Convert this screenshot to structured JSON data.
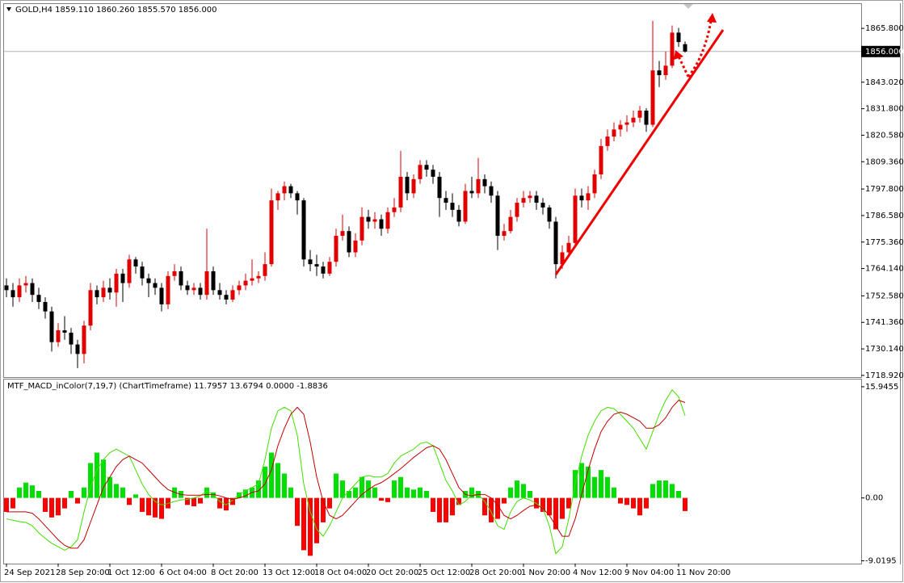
{
  "chart_data": [
    {
      "type": "candlestick",
      "legend_text": "GOLD,H4  1859.110 1860.260 1855.570 1856.000",
      "up_color": "#e00000",
      "down_color": "#000000",
      "ylim": [
        1718.2,
        1876.1
      ],
      "yticks": [
        {
          "value": 1718.92,
          "label": "1718.920"
        },
        {
          "value": 1730.14,
          "label": "1730.140"
        },
        {
          "value": 1741.36,
          "label": "1741.360"
        },
        {
          "value": 1752.58,
          "label": "1752.580"
        },
        {
          "value": 1764.14,
          "label": "1764.140"
        },
        {
          "value": 1775.36,
          "label": "1775.360"
        },
        {
          "value": 1786.58,
          "label": "1786.580"
        },
        {
          "value": 1797.8,
          "label": "1797.800"
        },
        {
          "value": 1809.36,
          "label": "1809.360"
        },
        {
          "value": 1820.58,
          "label": "1820.580"
        },
        {
          "value": 1831.8,
          "label": "1831.800"
        },
        {
          "value": 1843.02,
          "label": "1843.020"
        },
        {
          "value": 1865.8,
          "label": "1865.800"
        }
      ],
      "price_line": {
        "value": 1856,
        "label": "1856.000"
      },
      "xticks": [
        {
          "value": 0,
          "label": "24 Sep 2021"
        },
        {
          "value": 8,
          "label": "28 Sep 20:00"
        },
        {
          "value": 16,
          "label": "1 Oct 12:00"
        },
        {
          "value": 24,
          "label": "6 Oct 04:00"
        },
        {
          "value": 32,
          "label": "8 Oct 20:00"
        },
        {
          "value": 40,
          "label": "13 Oct 12:00"
        },
        {
          "value": 48,
          "label": "18 Oct 04:00"
        },
        {
          "value": 56,
          "label": "20 Oct 20:00"
        },
        {
          "value": 64,
          "label": "25 Oct 12:00"
        },
        {
          "value": 72,
          "label": "28 Oct 20:00"
        },
        {
          "value": 80,
          "label": "1 Nov 20:00"
        },
        {
          "value": 88,
          "label": "4 Nov 12:00"
        },
        {
          "value": 96,
          "label": "9 Nov 04:00"
        },
        {
          "value": 104,
          "label": "11 Nov 20:00"
        }
      ],
      "candles": [
        [
          1757,
          1760,
          1752,
          1755
        ],
        [
          1755,
          1758,
          1748,
          1752
        ],
        [
          1752,
          1760,
          1750,
          1757
        ],
        [
          1757,
          1761,
          1754,
          1758
        ],
        [
          1758,
          1760,
          1750,
          1753
        ],
        [
          1753,
          1756,
          1747,
          1750
        ],
        [
          1750,
          1752,
          1743,
          1746
        ],
        [
          1746,
          1748,
          1729,
          1733
        ],
        [
          1733,
          1741,
          1731,
          1738
        ],
        [
          1738,
          1744,
          1734,
          1737
        ],
        [
          1737,
          1739,
          1728,
          1732
        ],
        [
          1732,
          1734,
          1722,
          1728
        ],
        [
          1728,
          1742,
          1724,
          1740
        ],
        [
          1740,
          1758,
          1738,
          1755
        ],
        [
          1755,
          1757,
          1749,
          1752
        ],
        [
          1752,
          1759,
          1750,
          1756
        ],
        [
          1756,
          1760,
          1751,
          1754
        ],
        [
          1754,
          1764,
          1748,
          1762
        ],
        [
          1762,
          1764,
          1750,
          1758
        ],
        [
          1758,
          1770,
          1756,
          1768
        ],
        [
          1768,
          1769,
          1762,
          1765
        ],
        [
          1765,
          1767,
          1757,
          1760
        ],
        [
          1760,
          1762,
          1752,
          1758
        ],
        [
          1758,
          1760,
          1753,
          1756
        ],
        [
          1756,
          1758,
          1746,
          1749
        ],
        [
          1749,
          1763,
          1747,
          1761
        ],
        [
          1761,
          1766,
          1759,
          1763
        ],
        [
          1763,
          1765,
          1755,
          1757
        ],
        [
          1757,
          1759,
          1753,
          1755
        ],
        [
          1755,
          1758,
          1753,
          1756
        ],
        [
          1756,
          1758,
          1751,
          1753
        ],
        [
          1753,
          1781,
          1751,
          1763
        ],
        [
          1763,
          1765,
          1753,
          1755
        ],
        [
          1755,
          1758,
          1751,
          1753
        ],
        [
          1753,
          1755,
          1749,
          1751
        ],
        [
          1751,
          1757,
          1750,
          1755
        ],
        [
          1755,
          1759,
          1753,
          1757
        ],
        [
          1757,
          1762,
          1755,
          1759
        ],
        [
          1759,
          1768,
          1757,
          1760
        ],
        [
          1760,
          1763,
          1758,
          1761
        ],
        [
          1761,
          1771,
          1759,
          1766
        ],
        [
          1766,
          1798,
          1765,
          1793
        ],
        [
          1793,
          1797,
          1789,
          1796
        ],
        [
          1796,
          1801,
          1793,
          1799
        ],
        [
          1799,
          1800,
          1794,
          1796
        ],
        [
          1796,
          1797,
          1787,
          1793
        ],
        [
          1793,
          1794,
          1765,
          1768
        ],
        [
          1768,
          1772,
          1763,
          1766
        ],
        [
          1766,
          1770,
          1761,
          1765
        ],
        [
          1765,
          1767,
          1760,
          1762
        ],
        [
          1762,
          1769,
          1761,
          1767
        ],
        [
          1767,
          1781,
          1765,
          1778
        ],
        [
          1778,
          1787,
          1776,
          1780
        ],
        [
          1780,
          1782,
          1769,
          1771
        ],
        [
          1771,
          1779,
          1769,
          1776
        ],
        [
          1776,
          1790,
          1774,
          1786
        ],
        [
          1786,
          1789,
          1781,
          1784
        ],
        [
          1784,
          1788,
          1781,
          1785
        ],
        [
          1785,
          1787,
          1778,
          1781
        ],
        [
          1781,
          1790,
          1779,
          1788
        ],
        [
          1788,
          1794,
          1786,
          1790
        ],
        [
          1790,
          1814,
          1788,
          1803
        ],
        [
          1803,
          1805,
          1793,
          1796
        ],
        [
          1796,
          1804,
          1794,
          1802
        ],
        [
          1802,
          1810,
          1800,
          1808
        ],
        [
          1808,
          1810,
          1803,
          1806
        ],
        [
          1806,
          1808,
          1800,
          1803
        ],
        [
          1803,
          1805,
          1786,
          1794
        ],
        [
          1794,
          1797,
          1789,
          1792
        ],
        [
          1792,
          1796,
          1786,
          1789
        ],
        [
          1789,
          1791,
          1782,
          1784
        ],
        [
          1784,
          1800,
          1783,
          1797
        ],
        [
          1797,
          1803,
          1794,
          1796
        ],
        [
          1796,
          1811,
          1794,
          1802
        ],
        [
          1802,
          1804,
          1796,
          1799
        ],
        [
          1799,
          1801,
          1792,
          1795
        ],
        [
          1795,
          1797,
          1772,
          1778
        ],
        [
          1778,
          1783,
          1776,
          1780
        ],
        [
          1780,
          1789,
          1779,
          1786
        ],
        [
          1786,
          1794,
          1784,
          1792
        ],
        [
          1792,
          1797,
          1790,
          1794
        ],
        [
          1794,
          1797,
          1792,
          1795
        ],
        [
          1795,
          1797,
          1789,
          1792
        ],
        [
          1792,
          1794,
          1787,
          1790
        ],
        [
          1790,
          1791,
          1781,
          1784
        ],
        [
          1784,
          1786,
          1760,
          1766
        ],
        [
          1766,
          1774,
          1764,
          1771
        ],
        [
          1771,
          1778,
          1769,
          1775
        ],
        [
          1775,
          1798,
          1773,
          1795
        ],
        [
          1795,
          1798,
          1790,
          1793
        ],
        [
          1793,
          1799,
          1789,
          1796
        ],
        [
          1796,
          1806,
          1794,
          1804
        ],
        [
          1804,
          1819,
          1802,
          1816
        ],
        [
          1816,
          1823,
          1814,
          1820
        ],
        [
          1820,
          1826,
          1818,
          1823
        ],
        [
          1823,
          1827,
          1820,
          1825
        ],
        [
          1825,
          1829,
          1822,
          1826
        ],
        [
          1826,
          1831,
          1824,
          1828
        ],
        [
          1828,
          1833,
          1826,
          1831
        ],
        [
          1831,
          1832,
          1822,
          1825
        ],
        [
          1825,
          1869,
          1824,
          1848
        ],
        [
          1848,
          1852,
          1841,
          1846
        ],
        [
          1846,
          1856,
          1844,
          1850
        ],
        [
          1850,
          1867,
          1849,
          1864
        ],
        [
          1864,
          1866,
          1858,
          1860
        ],
        [
          1859.11,
          1860.26,
          1855.57,
          1856
        ]
      ]
    },
    {
      "type": "macd",
      "legend_text": "MTF_MACD_inColor(7,19,7) (ChartTimeframe) 11.7957 13.6794 0.0000 -1.8836",
      "ylim": [
        -9.42,
        16.98
      ],
      "yticks": [
        -9.0195,
        {
          "value": 0,
          "label": "0.00"
        },
        15.9455
      ],
      "histogram": {
        "positive_color": "#00e000",
        "negative_color": "#ff0000",
        "values": [
          -2,
          -1.5,
          1.5,
          2.2,
          1.8,
          1,
          -2,
          -2.8,
          -2.5,
          -1.5,
          1,
          -0.8,
          1.5,
          5,
          6.5,
          5.5,
          3,
          2,
          1.5,
          -1,
          0.5,
          -2,
          -2.5,
          -2.8,
          -3,
          -1.5,
          1.5,
          1,
          -1,
          -1.2,
          -0.8,
          1.5,
          0.8,
          -1.5,
          -1.8,
          -1,
          0.8,
          1.2,
          1.5,
          2.5,
          4.5,
          6.5,
          5,
          3.5,
          1.5,
          -4,
          -7.5,
          -8.3,
          -6.5,
          -3.5,
          -1.5,
          3.5,
          2.5,
          1,
          1.5,
          3,
          2.5,
          1.5,
          -0.4,
          -0.6,
          2.5,
          3,
          1.5,
          1.2,
          1.5,
          1,
          -2,
          -3.5,
          -3.5,
          -2.5,
          -1,
          1,
          1.5,
          1,
          -2.5,
          -3.5,
          -3,
          -0.8,
          1.5,
          2.5,
          2,
          1,
          -1.5,
          -2,
          -2.5,
          -4.5,
          -3,
          -1.5,
          4,
          5,
          4.5,
          3,
          4,
          3,
          1.5,
          -0.8,
          -1,
          -1.5,
          -2.5,
          -1.5,
          2,
          2.5,
          2.5,
          2,
          1,
          -1.8836
        ]
      },
      "series": [
        {
          "color": "#44dd00",
          "values": [
            -3,
            -3.2,
            -3.4,
            -3.5,
            -4,
            -5,
            -5.8,
            -6.5,
            -7,
            -7.5,
            -7,
            -6,
            -2,
            1.5,
            4,
            5.5,
            6.5,
            7,
            6.5,
            6,
            4,
            2,
            0.5,
            -0.5,
            -1,
            -0.8,
            -0.5,
            -0.3,
            -0.2,
            0,
            0.3,
            1,
            0.5,
            -0.5,
            -1,
            -0.3,
            0.5,
            1,
            1.5,
            2,
            5.5,
            10,
            12.5,
            13,
            12.5,
            9,
            2,
            -2,
            -4.5,
            -5.5,
            -4,
            -2,
            0,
            1,
            2,
            3,
            3.2,
            3,
            3,
            3.5,
            5,
            6,
            6.5,
            7,
            7.8,
            8,
            7.5,
            5,
            2.5,
            1,
            -1,
            -0.5,
            0.5,
            0.5,
            -0.5,
            -2,
            -4,
            -4.5,
            -2,
            -0.5,
            0,
            -0.3,
            -0.8,
            -1.5,
            -4,
            -8,
            -7,
            -3,
            2,
            6,
            9,
            11,
            12.5,
            13,
            12.8,
            12,
            11,
            10,
            8.5,
            7,
            9.5,
            12,
            14,
            15.5,
            14.5,
            11.7957
          ]
        },
        {
          "color": "#c00000",
          "values": [
            -2,
            -2,
            -2,
            -2,
            -2.2,
            -3,
            -4,
            -5,
            -6,
            -6.8,
            -7.2,
            -7.2,
            -6,
            -3.5,
            -1,
            1.5,
            3,
            4.5,
            5.5,
            6,
            5.5,
            5,
            4,
            3,
            2,
            1.2,
            0.8,
            0.5,
            0.4,
            0.4,
            0.4,
            0.5,
            0.5,
            0.3,
            0,
            -0.2,
            0,
            0.3,
            0.8,
            1,
            2,
            4,
            7.5,
            10,
            12,
            13,
            12,
            8,
            3,
            -0.5,
            -2.5,
            -3,
            -2.5,
            -1.5,
            -0.5,
            0.5,
            1.2,
            1.8,
            2.2,
            2.8,
            3.5,
            4.2,
            5,
            5.8,
            6.5,
            7.2,
            7.5,
            7,
            5.5,
            3.5,
            1.5,
            0.5,
            0.3,
            0.5,
            0.5,
            0,
            -1,
            -2.5,
            -3,
            -2.5,
            -1.8,
            -1.2,
            -1,
            -1.5,
            -2.5,
            -4,
            -5.5,
            -5.5,
            -3,
            0.5,
            4,
            7,
            9.5,
            11,
            12,
            12.3,
            12,
            11.5,
            11,
            10,
            10,
            10.5,
            11.5,
            13,
            14,
            13.6794
          ]
        }
      ]
    }
  ]
}
